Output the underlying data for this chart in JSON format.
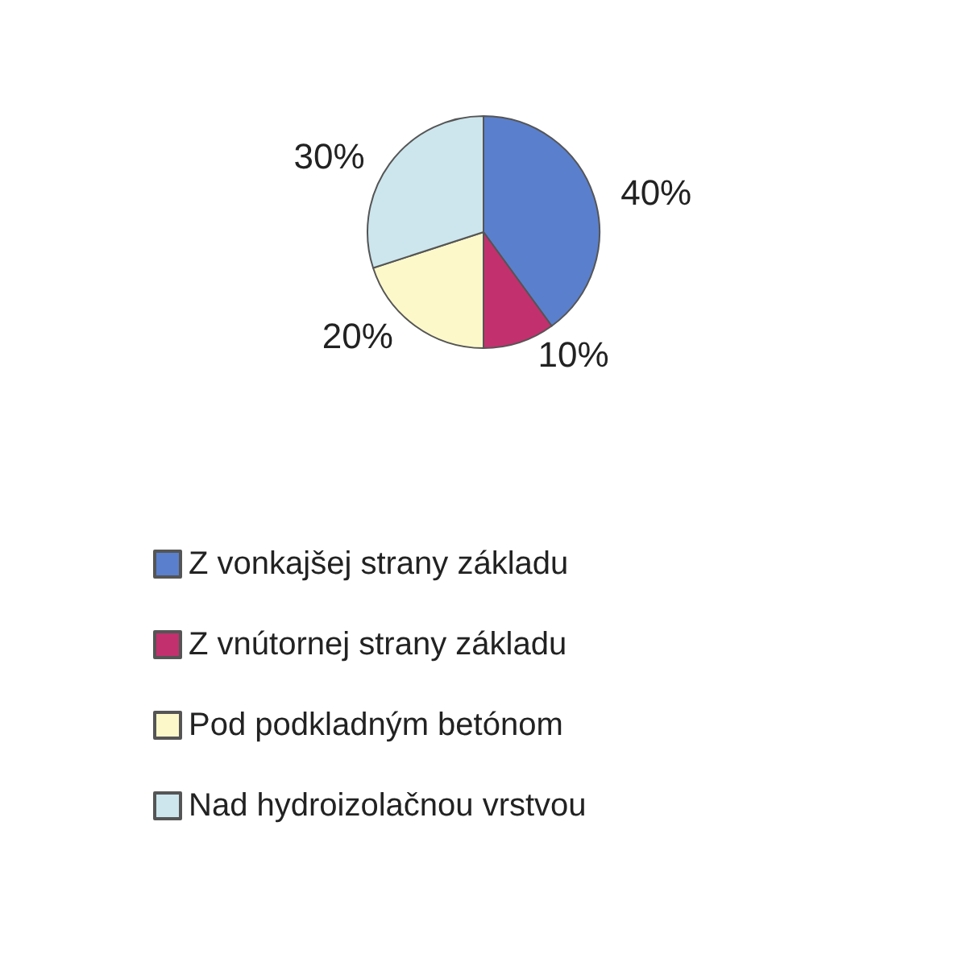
{
  "chart_data": {
    "type": "pie",
    "categories": [
      "Z vonkajšej strany základu",
      "Z vnútornej strany základu",
      "Pod podkladným betónom",
      "Nad hydroizolačnou vrstvou"
    ],
    "values": [
      40,
      10,
      20,
      30
    ],
    "colors": [
      "#5a7fcc",
      "#c3306e",
      "#fdf8ca",
      "#cde6ee"
    ],
    "value_labels": [
      "40%",
      "10%",
      "20%",
      "30%"
    ],
    "legend": "bottom"
  }
}
